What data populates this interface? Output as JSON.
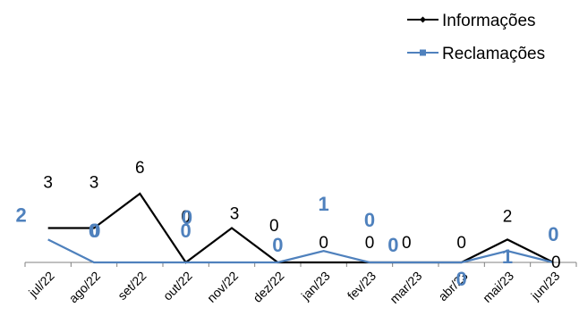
{
  "chart_data": {
    "type": "line",
    "categories": [
      "jul/22",
      "ago/22",
      "set/22",
      "out/22",
      "nov/22",
      "dez/22",
      "jan/23",
      "fev/23",
      "mar/23",
      "abr/23",
      "mai/23",
      "jun/23"
    ],
    "series": [
      {
        "name": "Informações",
        "values": [
          3,
          3,
          6,
          0,
          3,
          0,
          0,
          0,
          0,
          0,
          2,
          0
        ],
        "color": "#000000",
        "marker": "diamond"
      },
      {
        "name": "Reclamações",
        "values": [
          2,
          0,
          0,
          0,
          0,
          0,
          1,
          0,
          0,
          0,
          1,
          0
        ],
        "color": "#4F81BD",
        "marker": "square"
      }
    ],
    "title": "",
    "xlabel": "",
    "ylabel": "",
    "ylim": [
      0,
      6
    ],
    "grid": false,
    "legend": "top-right"
  }
}
